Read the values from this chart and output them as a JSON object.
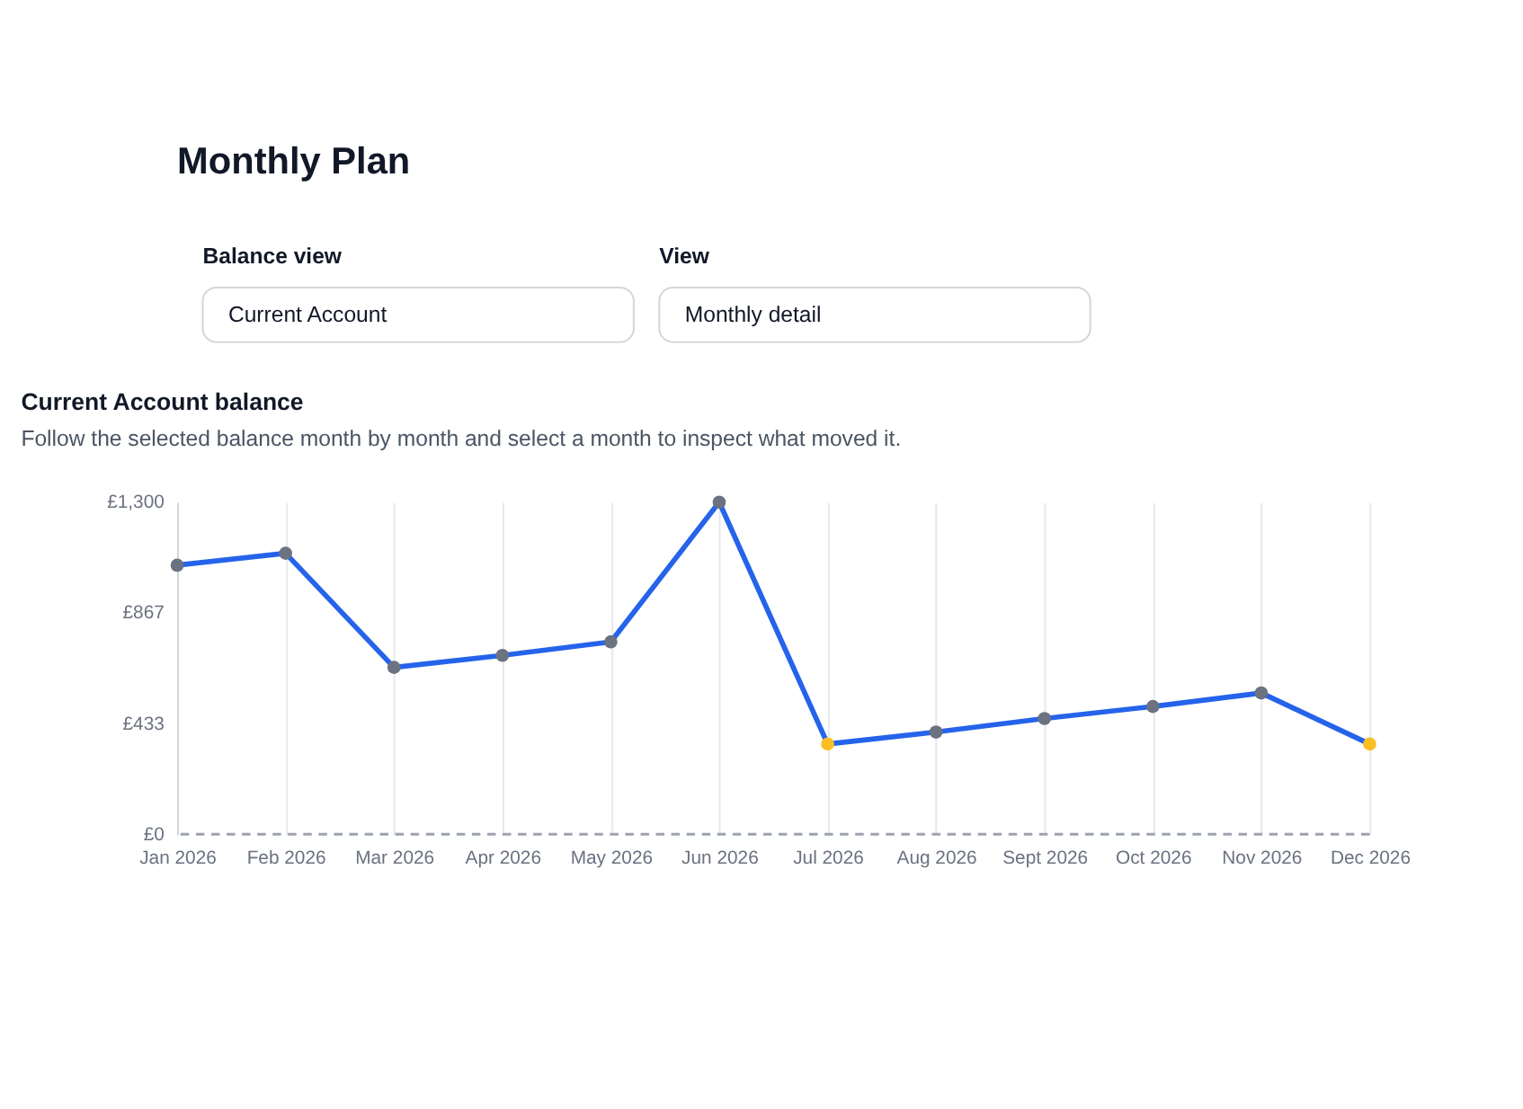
{
  "chart_data": {
    "type": "line",
    "title": "Current Account balance",
    "subtitle": "Follow the selected balance month by month and select a month to inspect what moved it.",
    "annotations": [
      "Monthly Plan",
      "Balance view",
      "Current Account",
      "View",
      "Monthly detail"
    ],
    "categories": [
      "Jan 2026",
      "Feb 2026",
      "Mar 2026",
      "Apr 2026",
      "May 2026",
      "Jun 2026",
      "Jul 2026",
      "Aug 2026",
      "Sept 2026",
      "Oct 2026",
      "Nov 2026",
      "Dec 2026"
    ],
    "series": [
      {
        "color": "#2563eb",
        "values": [
          1053,
          1100,
          653,
          700,
          753,
          1300,
          353,
          400,
          453,
          500,
          553,
          353
        ],
        "colors": [
          "#6b7280",
          "#6b7280",
          "#6b7280",
          "#6b7280",
          "#6b7280",
          "#6b7280",
          "#fbbf24",
          "#6b7280",
          "#6b7280",
          "#6b7280",
          "#6b7280",
          "#fbbf24"
        ]
      }
    ],
    "ylim": [
      0,
      1300
    ],
    "yticks": [
      {
        "value": 0,
        "label": "£0"
      },
      {
        "value": 433,
        "label": "£433"
      },
      {
        "value": 867,
        "label": "£867"
      },
      {
        "value": 1300,
        "label": "£1,300"
      }
    ],
    "ref_lines": [
      {
        "axis": "y",
        "value": 0,
        "color": "#9ca3af",
        "line_style": "dashed"
      }
    ],
    "grid": "x",
    "marker": "circle",
    "line_style": "solid"
  }
}
